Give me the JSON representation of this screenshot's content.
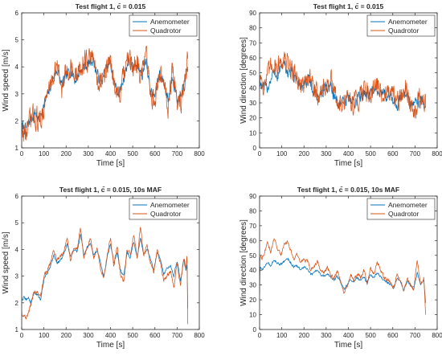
{
  "colors": {
    "anemometer": "#0072BD",
    "quadrotor": "#D95319"
  },
  "chart_data": [
    {
      "type": "line",
      "title": "Test flight 1,  c̄ = 0.015",
      "xlabel": "Time [s]",
      "ylabel": "Wind speed [m/s]",
      "xlim": [
        0,
        800
      ],
      "ylim": [
        1,
        6
      ],
      "xticks": [
        "0",
        "100",
        "200",
        "300",
        "400",
        "500",
        "600",
        "700",
        "800"
      ],
      "yticks": [
        "1",
        "2",
        "3",
        "4",
        "5",
        "6"
      ],
      "legend": "top-right",
      "series": [
        {
          "name": "Anemometer",
          "noise": 0.35,
          "x": [
            0,
            20,
            40,
            60,
            80,
            100,
            120,
            140,
            160,
            180,
            200,
            220,
            240,
            260,
            280,
            300,
            320,
            340,
            360,
            380,
            400,
            420,
            440,
            460,
            480,
            500,
            520,
            540,
            560,
            580,
            600,
            620,
            640,
            660,
            680,
            700,
            720,
            740,
            748
          ],
          "y": [
            1.8,
            1.7,
            2.1,
            2.3,
            2.0,
            2.6,
            3.0,
            3.6,
            3.9,
            3.3,
            3.6,
            3.9,
            3.5,
            3.8,
            4.0,
            4.1,
            4.3,
            3.7,
            3.5,
            3.9,
            4.1,
            3.3,
            3.0,
            3.6,
            4.2,
            3.9,
            4.2,
            3.6,
            4.3,
            3.1,
            2.9,
            3.8,
            3.4,
            2.8,
            3.7,
            2.8,
            2.9,
            3.6,
            4.0
          ]
        },
        {
          "name": "Quadrotor",
          "noise": 0.7,
          "x": [
            0,
            20,
            40,
            60,
            80,
            100,
            120,
            140,
            160,
            180,
            200,
            220,
            240,
            260,
            280,
            300,
            320,
            340,
            360,
            380,
            400,
            420,
            440,
            460,
            480,
            500,
            520,
            540,
            560,
            580,
            600,
            620,
            640,
            660,
            680,
            700,
            720,
            740,
            748
          ],
          "y": [
            1.6,
            1.5,
            2.0,
            2.2,
            1.9,
            2.5,
            3.1,
            3.7,
            4.0,
            3.2,
            3.7,
            4.1,
            3.5,
            3.9,
            4.2,
            4.2,
            4.4,
            3.6,
            3.4,
            4.0,
            4.2,
            3.2,
            2.9,
            3.6,
            4.3,
            3.9,
            4.3,
            3.6,
            4.4,
            3.0,
            2.7,
            3.8,
            3.3,
            2.6,
            3.8,
            2.7,
            2.8,
            3.6,
            4.3
          ]
        }
      ]
    },
    {
      "type": "line",
      "title": "Test flight 1,  c̄ = 0.015",
      "xlabel": "Time [s]",
      "ylabel": "Wind direction [degrees]",
      "xlim": [
        0,
        800
      ],
      "ylim": [
        0,
        90
      ],
      "xticks": [
        "0",
        "100",
        "200",
        "300",
        "400",
        "500",
        "600",
        "700",
        "800"
      ],
      "yticks": [
        "0",
        "10",
        "20",
        "30",
        "40",
        "50",
        "60",
        "70",
        "80",
        "90"
      ],
      "legend": "top-right",
      "series": [
        {
          "name": "Anemometer",
          "noise": 7,
          "x": [
            0,
            20,
            40,
            60,
            80,
            100,
            120,
            140,
            160,
            180,
            200,
            220,
            240,
            260,
            280,
            300,
            320,
            340,
            360,
            380,
            400,
            420,
            440,
            460,
            480,
            500,
            520,
            540,
            560,
            580,
            600,
            620,
            640,
            660,
            680,
            700,
            720,
            740,
            748
          ],
          "y": [
            45,
            38,
            42,
            50,
            48,
            55,
            52,
            50,
            47,
            42,
            40,
            45,
            38,
            35,
            37,
            40,
            42,
            33,
            30,
            28,
            34,
            30,
            32,
            36,
            38,
            35,
            40,
            37,
            36,
            34,
            32,
            30,
            34,
            38,
            30,
            28,
            33,
            30,
            28
          ]
        },
        {
          "name": "Quadrotor",
          "noise": 12,
          "x": [
            0,
            20,
            40,
            60,
            80,
            100,
            120,
            140,
            160,
            180,
            200,
            220,
            240,
            260,
            280,
            300,
            320,
            340,
            360,
            380,
            400,
            420,
            440,
            460,
            480,
            500,
            520,
            540,
            560,
            580,
            600,
            620,
            640,
            660,
            680,
            700,
            720,
            740,
            748
          ],
          "y": [
            50,
            42,
            48,
            58,
            54,
            60,
            56,
            53,
            49,
            44,
            42,
            47,
            40,
            36,
            38,
            42,
            45,
            34,
            30,
            26,
            35,
            30,
            33,
            38,
            40,
            36,
            42,
            39,
            38,
            35,
            33,
            28,
            35,
            40,
            30,
            27,
            34,
            30,
            27
          ]
        }
      ]
    },
    {
      "type": "line",
      "title": "Test flight 1,  c̄ = 0.015, 10s MAF",
      "xlabel": "Time [s]",
      "ylabel": "Wind speed [m/s]",
      "xlim": [
        0,
        800
      ],
      "ylim": [
        1,
        6
      ],
      "xticks": [
        "0",
        "100",
        "200",
        "300",
        "400",
        "500",
        "600",
        "700",
        "800"
      ],
      "yticks": [
        "1",
        "2",
        "3",
        "4",
        "5",
        "6"
      ],
      "legend": "top-right",
      "series": [
        {
          "name": "Anemometer",
          "noise": 0.08,
          "x": [
            0,
            2,
            10,
            20,
            30,
            40,
            55,
            70,
            85,
            100,
            115,
            130,
            145,
            160,
            175,
            190,
            205,
            220,
            235,
            250,
            265,
            280,
            295,
            310,
            325,
            340,
            355,
            370,
            385,
            400,
            415,
            430,
            445,
            460,
            475,
            490,
            505,
            520,
            535,
            550,
            565,
            580,
            595,
            610,
            625,
            640,
            655,
            670,
            685,
            700,
            715,
            730,
            740,
            745,
            748
          ],
          "y": [
            2.3,
            2.1,
            2.2,
            2.1,
            2.2,
            2.0,
            2.4,
            2.3,
            2.1,
            2.9,
            3.1,
            3.4,
            3.8,
            3.5,
            3.6,
            3.8,
            4.2,
            3.7,
            4.0,
            3.9,
            4.6,
            3.8,
            4.1,
            4.2,
            3.8,
            4.0,
            3.5,
            3.0,
            3.7,
            4.2,
            3.5,
            3.9,
            3.2,
            3.0,
            3.9,
            3.7,
            4.3,
            3.7,
            4.4,
            3.8,
            4.0,
            3.6,
            3.2,
            3.9,
            3.6,
            3.1,
            3.3,
            3.4,
            3.0,
            3.6,
            2.8,
            3.6,
            3.2,
            3.5,
            1.8
          ]
        },
        {
          "name": "Quadrotor",
          "noise": 0.12,
          "x": [
            0,
            2,
            10,
            20,
            30,
            40,
            55,
            70,
            85,
            100,
            115,
            130,
            145,
            160,
            175,
            190,
            205,
            220,
            235,
            250,
            265,
            280,
            295,
            310,
            325,
            340,
            355,
            370,
            385,
            400,
            415,
            430,
            445,
            460,
            475,
            490,
            505,
            520,
            535,
            550,
            565,
            580,
            595,
            610,
            625,
            640,
            655,
            670,
            685,
            700,
            715,
            730,
            740,
            745,
            748
          ],
          "y": [
            1.7,
            1.5,
            1.6,
            1.4,
            1.6,
            1.9,
            2.4,
            2.4,
            2.2,
            3.0,
            3.2,
            3.5,
            4.0,
            3.6,
            3.7,
            3.9,
            4.5,
            3.6,
            4.1,
            4.0,
            4.8,
            3.7,
            4.1,
            4.4,
            3.7,
            4.1,
            3.3,
            2.9,
            3.8,
            4.4,
            3.4,
            4.1,
            3.1,
            2.8,
            4.0,
            3.8,
            4.6,
            3.6,
            4.9,
            3.7,
            4.2,
            3.5,
            3.1,
            4.0,
            3.5,
            2.8,
            3.0,
            3.2,
            2.6,
            3.5,
            2.6,
            3.7,
            3.3,
            3.8,
            1.2
          ]
        }
      ]
    },
    {
      "type": "line",
      "title": "Test flight 1,  c̄ = 0.015, 10s MAF",
      "xlabel": "Time [s]",
      "ylabel": "Wind direction [degrees]",
      "xlim": [
        0,
        800
      ],
      "ylim": [
        0,
        90
      ],
      "xticks": [
        "0",
        "100",
        "200",
        "300",
        "400",
        "500",
        "600",
        "700",
        "800"
      ],
      "yticks": [
        "0",
        "10",
        "20",
        "30",
        "40",
        "50",
        "60",
        "70",
        "80",
        "90"
      ],
      "legend": "top-right",
      "series": [
        {
          "name": "Anemometer",
          "noise": 1.2,
          "x": [
            0,
            2,
            10,
            20,
            35,
            50,
            65,
            80,
            95,
            110,
            125,
            140,
            155,
            170,
            185,
            200,
            215,
            230,
            245,
            260,
            275,
            290,
            305,
            320,
            335,
            350,
            365,
            380,
            395,
            410,
            425,
            440,
            455,
            470,
            485,
            500,
            515,
            530,
            545,
            560,
            575,
            590,
            605,
            620,
            635,
            650,
            665,
            680,
            695,
            710,
            725,
            740,
            748
          ],
          "y": [
            25,
            42,
            40,
            42,
            45,
            43,
            47,
            45,
            44,
            46,
            48,
            45,
            42,
            43,
            40,
            42,
            41,
            37,
            38,
            40,
            37,
            36,
            38,
            35,
            33,
            36,
            32,
            27,
            30,
            34,
            32,
            35,
            33,
            36,
            31,
            37,
            35,
            38,
            36,
            33,
            32,
            30,
            28,
            35,
            32,
            27,
            33,
            30,
            28,
            38,
            30,
            33,
            18
          ]
        },
        {
          "name": "Quadrotor",
          "noise": 2,
          "x": [
            0,
            2,
            10,
            20,
            35,
            50,
            65,
            80,
            95,
            110,
            125,
            140,
            155,
            170,
            185,
            200,
            215,
            230,
            245,
            260,
            275,
            290,
            305,
            320,
            335,
            350,
            365,
            380,
            395,
            410,
            425,
            440,
            455,
            470,
            485,
            500,
            515,
            530,
            545,
            560,
            575,
            590,
            605,
            620,
            635,
            650,
            665,
            680,
            695,
            710,
            725,
            740,
            748
          ],
          "y": [
            35,
            50,
            48,
            52,
            58,
            52,
            61,
            55,
            50,
            57,
            60,
            53,
            48,
            50,
            45,
            48,
            46,
            40,
            42,
            46,
            40,
            38,
            42,
            37,
            34,
            40,
            33,
            25,
            30,
            37,
            33,
            38,
            35,
            40,
            31,
            42,
            37,
            45,
            40,
            35,
            34,
            31,
            28,
            37,
            33,
            26,
            35,
            30,
            27,
            48,
            30,
            35,
            10
          ]
        }
      ]
    }
  ]
}
